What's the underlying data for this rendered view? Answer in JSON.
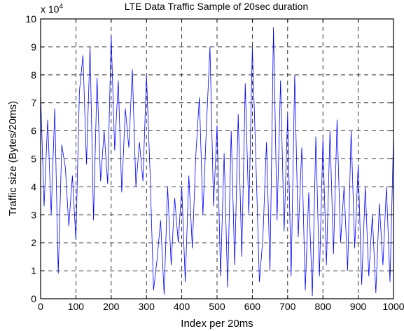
{
  "chart_data": {
    "type": "line",
    "title": "LTE Data Traffic Sample of 20sec duration",
    "xlabel": "Index per 20ms",
    "ylabel": "Traffic size (Bytes/20ms)",
    "y_multiplier_label": "x 10",
    "y_multiplier_exponent": "4",
    "xlim": [
      0,
      1000
    ],
    "ylim": [
      0,
      100000
    ],
    "xticks": [
      0,
      100,
      200,
      300,
      400,
      500,
      600,
      700,
      800,
      900,
      1000
    ],
    "yticks": [
      0,
      10000,
      20000,
      30000,
      40000,
      50000,
      60000,
      70000,
      80000,
      90000,
      100000
    ],
    "ytick_labels": [
      "0",
      "1",
      "2",
      "3",
      "4",
      "5",
      "6",
      "7",
      "8",
      "9",
      "10"
    ],
    "grid": true,
    "series": [
      {
        "color": "#0000ff",
        "x": [
          0,
          10,
          20,
          30,
          40,
          50,
          60,
          70,
          80,
          90,
          100,
          110,
          120,
          130,
          140,
          150,
          160,
          170,
          180,
          190,
          200,
          210,
          220,
          230,
          240,
          250,
          260,
          270,
          280,
          290,
          300,
          310,
          320,
          330,
          340,
          350,
          360,
          370,
          380,
          390,
          400,
          410,
          420,
          430,
          440,
          450,
          460,
          470,
          480,
          490,
          500,
          510,
          520,
          530,
          540,
          550,
          560,
          570,
          580,
          590,
          600,
          610,
          620,
          630,
          640,
          650,
          660,
          670,
          680,
          690,
          700,
          710,
          720,
          730,
          740,
          750,
          760,
          770,
          780,
          790,
          800,
          810,
          820,
          830,
          840,
          850,
          860,
          870,
          880,
          890,
          900,
          910,
          920,
          930,
          940,
          950,
          960,
          970,
          980,
          990,
          1000
        ],
        "y": [
          73000,
          33000,
          64000,
          30000,
          68000,
          9000,
          55000,
          47000,
          26000,
          44000,
          21000,
          74000,
          87000,
          48000,
          90000,
          28000,
          79000,
          42000,
          60000,
          41000,
          94000,
          53000,
          78000,
          38000,
          68000,
          54000,
          82000,
          40000,
          56000,
          42000,
          80000,
          46000,
          3000,
          14000,
          28000,
          1500,
          40000,
          12000,
          36000,
          20000,
          40000,
          6000,
          44000,
          18000,
          52000,
          72000,
          30000,
          62000,
          90000,
          33000,
          62000,
          8000,
          52000,
          4000,
          60000,
          12000,
          66000,
          15000,
          77000,
          30000,
          90000,
          50000,
          6000,
          22000,
          56000,
          10000,
          97000,
          28000,
          78000,
          24000,
          66000,
          8000,
          80000,
          22000,
          54000,
          3000,
          38000,
          1000,
          58000,
          8000,
          57000,
          12000,
          60000,
          16000,
          64000,
          20000,
          40000,
          10000,
          60000,
          18000,
          48000,
          5000,
          40000,
          8000,
          30000,
          2000,
          34000,
          12000,
          40000,
          6000,
          58000
        ]
      }
    ]
  }
}
